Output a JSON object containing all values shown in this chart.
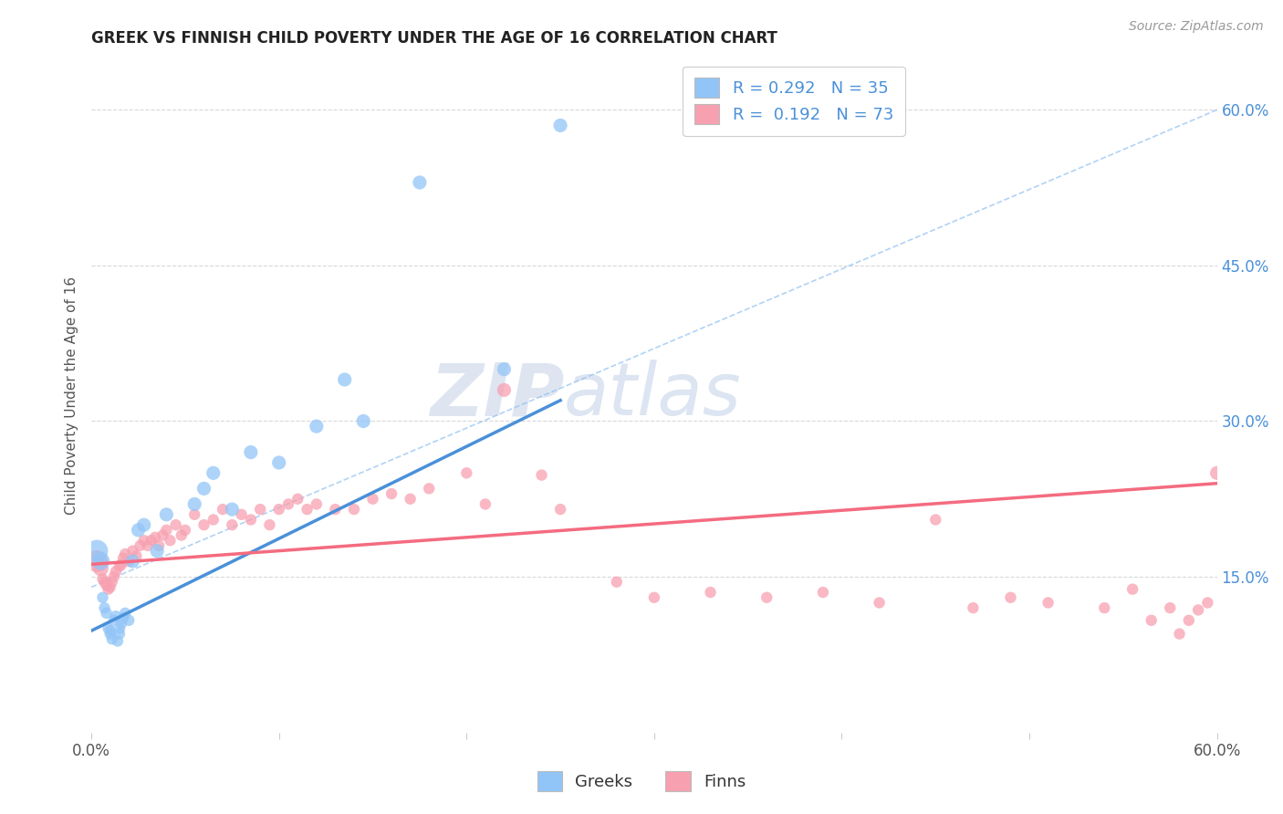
{
  "title": "GREEK VS FINNISH CHILD POVERTY UNDER THE AGE OF 16 CORRELATION CHART",
  "source": "Source: ZipAtlas.com",
  "ylabel": "Child Poverty Under the Age of 16",
  "xlim": [
    0.0,
    0.6
  ],
  "ylim": [
    0.0,
    0.65
  ],
  "ytick_positions_right": [
    0.6,
    0.45,
    0.3,
    0.15
  ],
  "greek_R": 0.292,
  "greek_N": 35,
  "finn_R": 0.192,
  "finn_N": 73,
  "greek_color": "#92C5F7",
  "finn_color": "#F7A0B0",
  "greek_line_color": "#4A90D9",
  "finn_line_color": "#F46B80",
  "dashed_line_color": "#90C0F0",
  "background_color": "#FFFFFF",
  "grid_color": "#D8D8D8",
  "watermark": "ZIPatlas",
  "watermark_color": "#C8D5E8",
  "greek_trend": [
    0.098,
    0.32
  ],
  "greek_trend_x": [
    0.0,
    0.25
  ],
  "finn_trend": [
    0.162,
    0.24
  ],
  "finn_trend_x": [
    0.0,
    0.6
  ],
  "dash_trend": [
    0.14,
    0.6
  ],
  "dash_trend_x": [
    0.0,
    0.6
  ],
  "greeks_x": [
    0.003,
    0.005,
    0.006,
    0.007,
    0.008,
    0.009,
    0.01,
    0.01,
    0.011,
    0.012,
    0.013,
    0.014,
    0.015,
    0.015,
    0.016,
    0.017,
    0.018,
    0.02,
    0.022,
    0.025,
    0.028,
    0.035,
    0.04,
    0.055,
    0.06,
    0.065,
    0.075,
    0.085,
    0.1,
    0.12,
    0.135,
    0.145,
    0.175,
    0.22,
    0.25
  ],
  "greeks_y": [
    0.175,
    0.165,
    0.13,
    0.12,
    0.115,
    0.1,
    0.098,
    0.095,
    0.09,
    0.108,
    0.112,
    0.088,
    0.095,
    0.1,
    0.105,
    0.11,
    0.115,
    0.108,
    0.165,
    0.195,
    0.2,
    0.175,
    0.21,
    0.22,
    0.235,
    0.25,
    0.215,
    0.27,
    0.26,
    0.295,
    0.34,
    0.3,
    0.53,
    0.35,
    0.585
  ],
  "greeks_size": [
    300,
    200,
    80,
    80,
    80,
    80,
    80,
    80,
    80,
    80,
    80,
    80,
    80,
    80,
    80,
    80,
    80,
    80,
    120,
    120,
    120,
    120,
    120,
    120,
    120,
    120,
    120,
    120,
    120,
    120,
    120,
    120,
    120,
    120,
    120
  ],
  "finns_x": [
    0.003,
    0.005,
    0.006,
    0.007,
    0.008,
    0.009,
    0.01,
    0.011,
    0.012,
    0.013,
    0.015,
    0.016,
    0.017,
    0.018,
    0.02,
    0.022,
    0.024,
    0.026,
    0.028,
    0.03,
    0.032,
    0.034,
    0.036,
    0.038,
    0.04,
    0.042,
    0.045,
    0.048,
    0.05,
    0.055,
    0.06,
    0.065,
    0.07,
    0.075,
    0.08,
    0.085,
    0.09,
    0.095,
    0.1,
    0.105,
    0.11,
    0.115,
    0.12,
    0.13,
    0.14,
    0.15,
    0.16,
    0.17,
    0.18,
    0.2,
    0.21,
    0.22,
    0.24,
    0.25,
    0.28,
    0.3,
    0.33,
    0.36,
    0.39,
    0.42,
    0.45,
    0.47,
    0.49,
    0.51,
    0.54,
    0.555,
    0.565,
    0.575,
    0.58,
    0.585,
    0.59,
    0.595,
    0.6
  ],
  "finns_y": [
    0.165,
    0.158,
    0.148,
    0.145,
    0.142,
    0.138,
    0.14,
    0.145,
    0.15,
    0.155,
    0.16,
    0.162,
    0.168,
    0.172,
    0.165,
    0.175,
    0.17,
    0.18,
    0.185,
    0.18,
    0.185,
    0.188,
    0.18,
    0.19,
    0.195,
    0.185,
    0.2,
    0.19,
    0.195,
    0.21,
    0.2,
    0.205,
    0.215,
    0.2,
    0.21,
    0.205,
    0.215,
    0.2,
    0.215,
    0.22,
    0.225,
    0.215,
    0.22,
    0.215,
    0.215,
    0.225,
    0.23,
    0.225,
    0.235,
    0.25,
    0.22,
    0.33,
    0.248,
    0.215,
    0.145,
    0.13,
    0.135,
    0.13,
    0.135,
    0.125,
    0.205,
    0.12,
    0.13,
    0.125,
    0.12,
    0.138,
    0.108,
    0.12,
    0.095,
    0.108,
    0.118,
    0.125,
    0.25
  ],
  "finns_size": [
    300,
    150,
    80,
    80,
    80,
    80,
    80,
    80,
    80,
    80,
    80,
    80,
    80,
    80,
    80,
    80,
    80,
    80,
    80,
    80,
    80,
    80,
    80,
    80,
    80,
    80,
    80,
    80,
    80,
    80,
    80,
    80,
    80,
    80,
    80,
    80,
    80,
    80,
    80,
    80,
    80,
    80,
    80,
    80,
    80,
    80,
    80,
    80,
    80,
    80,
    80,
    120,
    80,
    80,
    80,
    80,
    80,
    80,
    80,
    80,
    80,
    80,
    80,
    80,
    80,
    80,
    80,
    80,
    80,
    80,
    80,
    80,
    120
  ]
}
